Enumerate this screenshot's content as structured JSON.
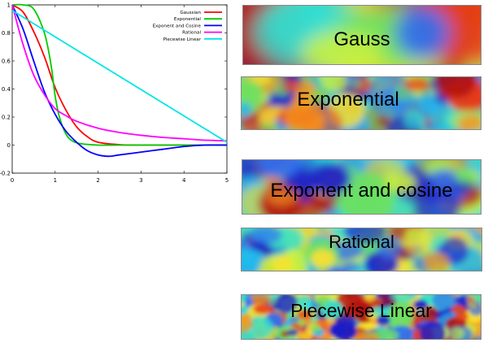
{
  "chart_data": {
    "type": "line",
    "xlim": [
      0,
      5
    ],
    "ylim": [
      -0.2,
      1
    ],
    "x_ticks": [
      "0",
      "1",
      "2",
      "3",
      "4",
      "5"
    ],
    "y_ticks": [
      "1",
      "0.8",
      "0.6",
      "0.4",
      "0.2",
      "0",
      "-0.2"
    ],
    "tick_values_x": [
      0,
      1,
      2,
      3,
      4,
      5
    ],
    "tick_values_y": [
      1,
      0.8,
      0.6,
      0.4,
      0.2,
      0,
      -0.2
    ],
    "legend_position": "top-right",
    "series": [
      {
        "name": "Gaussian",
        "color": "#ff0000",
        "x": [
          0,
          0.25,
          0.5,
          0.75,
          1,
          1.25,
          1.5,
          1.75,
          2,
          2.5,
          3,
          3.5,
          4,
          4.5,
          5
        ],
        "y": [
          1,
          0.95,
          0.81,
          0.63,
          0.41,
          0.25,
          0.13,
          0.06,
          0.02,
          0.003,
          0,
          0,
          0,
          0,
          0
        ]
      },
      {
        "name": "Exponential",
        "color": "#00cc00",
        "x": [
          0,
          0.25,
          0.5,
          0.75,
          0.9,
          1,
          1.1,
          1.25,
          1.4,
          1.6,
          2,
          2.5,
          3,
          4,
          5
        ],
        "y": [
          1,
          1,
          0.97,
          0.8,
          0.58,
          0.35,
          0.2,
          0.08,
          0.03,
          0.01,
          0,
          0,
          0,
          0,
          0
        ]
      },
      {
        "name": "Exponent and Cosine",
        "color": "#0000ff",
        "x": [
          0,
          0.25,
          0.5,
          0.75,
          1,
          1.25,
          1.5,
          1.75,
          2,
          2.25,
          2.5,
          3,
          3.5,
          4,
          4.5,
          5
        ],
        "y": [
          1,
          0.83,
          0.6,
          0.38,
          0.22,
          0.1,
          0.02,
          -0.04,
          -0.07,
          -0.08,
          -0.07,
          -0.05,
          -0.03,
          -0.01,
          0,
          0
        ]
      },
      {
        "name": "Rational",
        "color": "#ff00ff",
        "x": [
          0,
          0.25,
          0.5,
          0.75,
          1,
          1.25,
          1.5,
          2,
          2.5,
          3,
          3.5,
          4,
          4.5,
          5
        ],
        "y": [
          1,
          0.72,
          0.5,
          0.36,
          0.26,
          0.21,
          0.17,
          0.12,
          0.09,
          0.07,
          0.055,
          0.045,
          0.035,
          0.03
        ]
      },
      {
        "name": "Piecewise Linear",
        "color": "#00e6e6",
        "x": [
          0,
          5
        ],
        "y": [
          0.96,
          0.02
        ]
      }
    ]
  },
  "fields": [
    {
      "label": "Gauss",
      "seed": 11,
      "scale": 0.55
    },
    {
      "label": "Exponential",
      "seed": 23,
      "scale": 1.4
    },
    {
      "label": "Exponent and cosine",
      "seed": 37,
      "scale": 1.1
    },
    {
      "label": "Rational",
      "seed": 53,
      "scale": 1.5
    },
    {
      "label": "Piecewise Linear",
      "seed": 71,
      "scale": 2.4
    }
  ]
}
